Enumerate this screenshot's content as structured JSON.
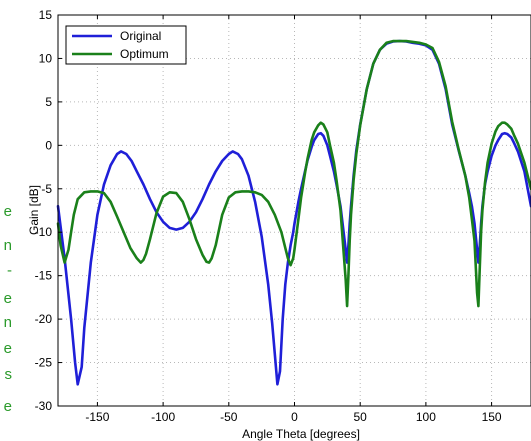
{
  "chart_data": {
    "type": "line",
    "title": "",
    "xlabel": "Angle Theta [degrees]",
    "ylabel": "Gain [dB]",
    "xlim": [
      -180,
      180
    ],
    "ylim": [
      -30,
      15
    ],
    "xticks": [
      -150,
      -100,
      -50,
      0,
      50,
      100,
      150
    ],
    "yticks": [
      15,
      10,
      5,
      0,
      -5,
      -10,
      -15,
      -20,
      -25,
      -30
    ],
    "grid": true,
    "legend_position": "top-left",
    "series": [
      {
        "name": "Original",
        "color": "#1f1fd8",
        "x": [
          -180,
          -175,
          -170,
          -167,
          -165,
          -162,
          -160,
          -155,
          -150,
          -145,
          -140,
          -135,
          -132,
          -128,
          -124,
          -120,
          -115,
          -110,
          -105,
          -100,
          -95,
          -90,
          -85,
          -80,
          -75,
          -70,
          -65,
          -60,
          -55,
          -50,
          -47,
          -43,
          -40,
          -35,
          -30,
          -25,
          -20,
          -17,
          -15,
          -13,
          -11,
          -9,
          -7,
          -5,
          -3,
          -1,
          0,
          3,
          5,
          8,
          10,
          13,
          15,
          18,
          20,
          22,
          25,
          27,
          30,
          32,
          35,
          37,
          39,
          40,
          41,
          42,
          43,
          45,
          47,
          50,
          55,
          60,
          65,
          70,
          75,
          80,
          85,
          90,
          95,
          100,
          105,
          110,
          115,
          120,
          125,
          130,
          133,
          135,
          137,
          138,
          139,
          140,
          141,
          142,
          143,
          145,
          147,
          150,
          153,
          155,
          158,
          160,
          162,
          165,
          167,
          170,
          175,
          180
        ],
        "y": [
          -7,
          -13,
          -20,
          -25,
          -27.5,
          -25.5,
          -21,
          -13.5,
          -8,
          -4.5,
          -2.3,
          -1,
          -0.7,
          -1,
          -1.8,
          -3,
          -4.5,
          -6.2,
          -7.7,
          -8.8,
          -9.5,
          -9.7,
          -9.5,
          -8.8,
          -7.7,
          -6.2,
          -4.5,
          -3,
          -1.8,
          -1,
          -0.7,
          -1,
          -1.6,
          -3.5,
          -6.5,
          -10.5,
          -16,
          -20.5,
          -24,
          -27.5,
          -26,
          -20,
          -16,
          -13.5,
          -11.5,
          -10,
          -9,
          -6.5,
          -5,
          -3,
          -1.7,
          -0.2,
          0.6,
          1.3,
          1.4,
          1.1,
          0,
          -1.2,
          -3,
          -4.5,
          -7,
          -9.5,
          -12,
          -13.5,
          -11.5,
          -9,
          -7,
          -3.5,
          -0.6,
          2.4,
          6.5,
          9.4,
          11,
          11.7,
          11.95,
          12,
          11.95,
          11.8,
          11.7,
          11.5,
          11,
          9.4,
          6.5,
          2.4,
          -0.6,
          -3.5,
          -5.5,
          -7,
          -9,
          -10.5,
          -12,
          -13.5,
          -11.5,
          -9,
          -7,
          -4.5,
          -3,
          -1.2,
          0,
          0.6,
          1.3,
          1.4,
          1.3,
          0.9,
          0.3,
          -0.7,
          -3,
          -7
        ]
      },
      {
        "name": "Optimum",
        "color": "#1a801a",
        "x": [
          -180,
          -178,
          -175,
          -172,
          -170,
          -168,
          -165,
          -160,
          -155,
          -150,
          -145,
          -140,
          -135,
          -130,
          -125,
          -120,
          -117,
          -115,
          -113,
          -110,
          -105,
          -100,
          -95,
          -90,
          -85,
          -80,
          -75,
          -70,
          -67,
          -65,
          -63,
          -60,
          -55,
          -50,
          -45,
          -40,
          -35,
          -30,
          -25,
          -20,
          -15,
          -10,
          -7,
          -5,
          -3,
          -1,
          0,
          3,
          5,
          8,
          10,
          13,
          15,
          18,
          20,
          22,
          25,
          27,
          30,
          32,
          35,
          37,
          39,
          40,
          41,
          42,
          43,
          45,
          47,
          50,
          55,
          60,
          65,
          70,
          75,
          80,
          85,
          90,
          95,
          100,
          105,
          110,
          115,
          120,
          125,
          130,
          133,
          135,
          137,
          138,
          139,
          140,
          141,
          142,
          143,
          145,
          147,
          150,
          153,
          155,
          158,
          160,
          162,
          165,
          167,
          170,
          175,
          180
        ],
        "y": [
          -9,
          -11.5,
          -13.5,
          -12,
          -10,
          -8,
          -6.2,
          -5.4,
          -5.3,
          -5.3,
          -5.5,
          -6.5,
          -8.2,
          -10,
          -11.8,
          -13,
          -13.5,
          -13.2,
          -12.5,
          -10.8,
          -7.8,
          -5.9,
          -5.4,
          -5.5,
          -6.5,
          -8.5,
          -10.8,
          -12.6,
          -13.4,
          -13.5,
          -13,
          -11.5,
          -8,
          -6,
          -5.4,
          -5.3,
          -5.3,
          -5.4,
          -5.7,
          -6.5,
          -8,
          -10,
          -11.8,
          -13,
          -13.8,
          -13,
          -12,
          -8.5,
          -6,
          -3.2,
          -1.5,
          0.6,
          1.5,
          2.3,
          2.6,
          2.4,
          1.5,
          0,
          -2,
          -4,
          -7.5,
          -11.5,
          -15.5,
          -18.5,
          -15,
          -11,
          -8,
          -4,
          -1,
          2.3,
          6.5,
          9.4,
          11,
          11.8,
          12,
          12,
          12,
          11.9,
          11.8,
          11.6,
          11.2,
          9.6,
          6.8,
          2.7,
          -0.5,
          -3.5,
          -6,
          -8.5,
          -11,
          -14,
          -17,
          -18.5,
          -14,
          -10,
          -7.5,
          -4.3,
          -2,
          0.2,
          1.6,
          2.2,
          2.6,
          2.6,
          2.4,
          1.9,
          1.2,
          0.2,
          -2,
          -5
        ]
      }
    ]
  },
  "side_text": [
    "e",
    "n",
    "-",
    "e",
    "n",
    "e",
    "s",
    "e"
  ]
}
